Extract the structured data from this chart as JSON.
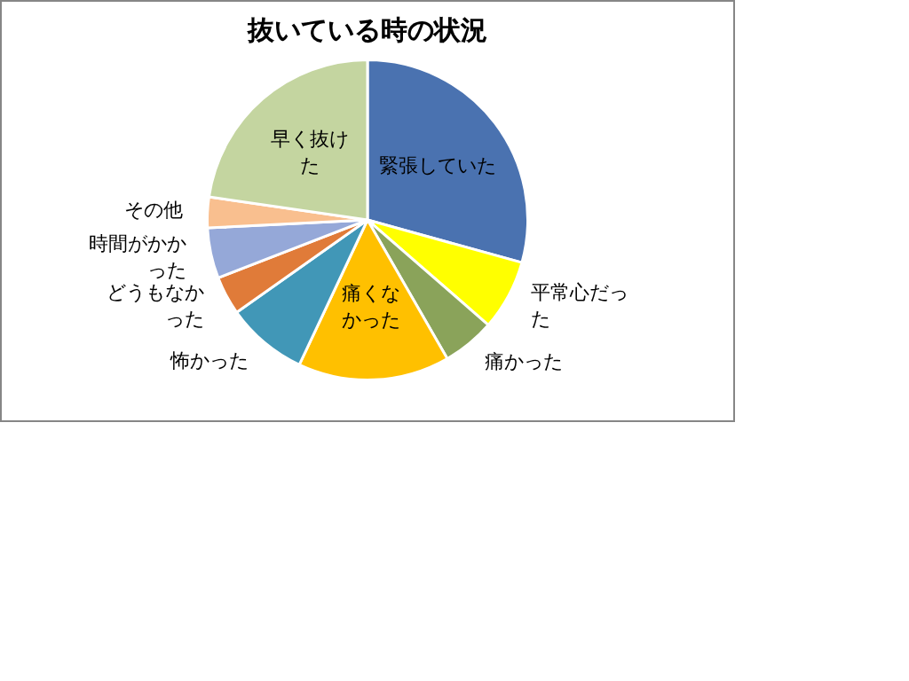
{
  "chart_data": {
    "type": "pie",
    "title": "抜いている時の状況",
    "categories": [
      "緊張していた",
      "平常心だった",
      "痛かった",
      "痛くなかった",
      "怖かった",
      "どうもなかった",
      "時間がかかった",
      "その他",
      "早く抜けた"
    ],
    "values": [
      29.3,
      7.1,
      5.3,
      15.3,
      8.2,
      3.9,
      5.1,
      3.1,
      22.7
    ],
    "colors": [
      "#4a72b0",
      "#ffff00",
      "#8aa35a",
      "#ffc000",
      "#4197b7",
      "#e07b39",
      "#95a8d8",
      "#f9bf8f",
      "#c4d5a0"
    ],
    "legend": false
  }
}
